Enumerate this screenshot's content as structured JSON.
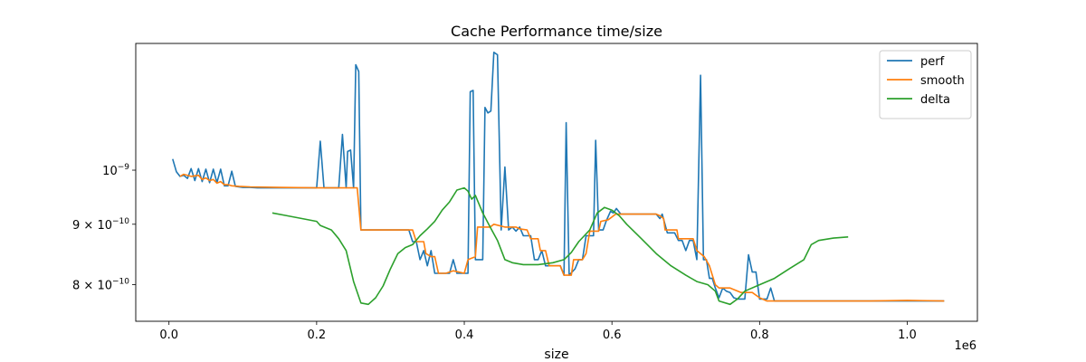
{
  "chart_data": {
    "type": "line",
    "title": "Cache Performance time/size",
    "xlabel": "size",
    "ylabel": "",
    "x_offset_label": "1e6",
    "y_scale": "log",
    "xlim": [
      -45000,
      1095000
    ],
    "ylim": [
      7.45e-10,
      1.28e-09
    ],
    "x_ticks": [
      {
        "value": 0,
        "label": "0.0"
      },
      {
        "value": 200000,
        "label": "0.2"
      },
      {
        "value": 400000,
        "label": "0.4"
      },
      {
        "value": 600000,
        "label": "0.6"
      },
      {
        "value": 800000,
        "label": "0.8"
      },
      {
        "value": 1000000,
        "label": "1.0"
      }
    ],
    "y_ticks": [
      {
        "value": 1e-09,
        "base": "10",
        "exp": "−9",
        "prefix": ""
      },
      {
        "value": 9e-10,
        "base": "10",
        "exp": "−10",
        "prefix": "9 × "
      },
      {
        "value": 8e-10,
        "base": "10",
        "exp": "−10",
        "prefix": "8 × "
      }
    ],
    "legend_position": "top-right",
    "series": [
      {
        "name": "perf",
        "color": "#1f77b4",
        "points": [
          [
            5000,
            1.022e-09
          ],
          [
            10000,
            9.97e-10
          ],
          [
            15000,
            9.88e-10
          ],
          [
            20000,
            9.9e-10
          ],
          [
            25000,
            9.84e-10
          ],
          [
            30000,
            1.003e-09
          ],
          [
            35000,
            9.8e-10
          ],
          [
            40000,
            1.003e-09
          ],
          [
            45000,
            9.78e-10
          ],
          [
            50000,
            1.002e-09
          ],
          [
            55000,
            9.76e-10
          ],
          [
            60000,
            1.002e-09
          ],
          [
            65000,
            9.76e-10
          ],
          [
            70000,
            1.002e-09
          ],
          [
            75000,
            9.7e-10
          ],
          [
            80000,
            9.7e-10
          ],
          [
            85000,
            9.98e-10
          ],
          [
            90000,
            9.69e-10
          ],
          [
            100000,
            9.67e-10
          ],
          [
            110000,
            9.67e-10
          ],
          [
            120000,
            9.66e-10
          ],
          [
            150000,
            9.66e-10
          ],
          [
            180000,
            9.66e-10
          ],
          [
            200000,
            9.66e-10
          ],
          [
            205000,
            1.058e-09
          ],
          [
            210000,
            9.66e-10
          ],
          [
            230000,
            9.66e-10
          ],
          [
            235000,
            1.072e-09
          ],
          [
            240000,
            9.66e-10
          ],
          [
            242000,
            1.037e-09
          ],
          [
            246000,
            1.04e-09
          ],
          [
            250000,
            9.66e-10
          ],
          [
            253000,
            1.228e-09
          ],
          [
            257000,
            1.212e-09
          ],
          [
            260000,
            8.9e-10
          ],
          [
            300000,
            8.9e-10
          ],
          [
            325000,
            8.9e-10
          ],
          [
            330000,
            8.7e-10
          ],
          [
            335000,
            8.7e-10
          ],
          [
            340000,
            8.4e-10
          ],
          [
            345000,
            8.55e-10
          ],
          [
            350000,
            8.3e-10
          ],
          [
            355000,
            8.55e-10
          ],
          [
            360000,
            8.18e-10
          ],
          [
            370000,
            8.18e-10
          ],
          [
            380000,
            8.18e-10
          ],
          [
            385000,
            8.4e-10
          ],
          [
            390000,
            8.18e-10
          ],
          [
            400000,
            8.18e-10
          ],
          [
            405000,
            8.18e-10
          ],
          [
            408000,
            1.165e-09
          ],
          [
            412000,
            1.168e-09
          ],
          [
            415000,
            8.4e-10
          ],
          [
            420000,
            8.4e-10
          ],
          [
            425000,
            8.4e-10
          ],
          [
            428000,
            1.13e-09
          ],
          [
            432000,
            1.118e-09
          ],
          [
            436000,
            1.122e-09
          ],
          [
            440000,
            1.258e-09
          ],
          [
            445000,
            1.252e-09
          ],
          [
            450000,
            8.9e-10
          ],
          [
            455000,
            1.006e-09
          ],
          [
            460000,
            8.9e-10
          ],
          [
            465000,
            8.95e-10
          ],
          [
            470000,
            8.88e-10
          ],
          [
            475000,
            8.95e-10
          ],
          [
            480000,
            8.8e-10
          ],
          [
            490000,
            8.8e-10
          ],
          [
            495000,
            8.4e-10
          ],
          [
            500000,
            8.4e-10
          ],
          [
            505000,
            8.55e-10
          ],
          [
            510000,
            8.3e-10
          ],
          [
            520000,
            8.3e-10
          ],
          [
            525000,
            8.3e-10
          ],
          [
            530000,
            8.3e-10
          ],
          [
            535000,
            8.15e-10
          ],
          [
            538000,
            1.097e-09
          ],
          [
            542000,
            8.15e-10
          ],
          [
            550000,
            8.25e-10
          ],
          [
            555000,
            8.4e-10
          ],
          [
            560000,
            8.4e-10
          ],
          [
            565000,
            8.8e-10
          ],
          [
            570000,
            8.8e-10
          ],
          [
            575000,
            8.8e-10
          ],
          [
            578000,
            1.06e-09
          ],
          [
            582000,
            8.9e-10
          ],
          [
            588000,
            8.9e-10
          ],
          [
            592000,
            9.05e-10
          ],
          [
            598000,
            9.23e-10
          ],
          [
            602000,
            9.2e-10
          ],
          [
            606000,
            9.28e-10
          ],
          [
            612000,
            9.18e-10
          ],
          [
            620000,
            9.18e-10
          ],
          [
            640000,
            9.18e-10
          ],
          [
            660000,
            9.18e-10
          ],
          [
            665000,
            9.1e-10
          ],
          [
            668000,
            9.18e-10
          ],
          [
            675000,
            8.85e-10
          ],
          [
            680000,
            8.85e-10
          ],
          [
            685000,
            8.85e-10
          ],
          [
            690000,
            8.72e-10
          ],
          [
            695000,
            8.72e-10
          ],
          [
            700000,
            8.55e-10
          ],
          [
            705000,
            8.72e-10
          ],
          [
            710000,
            8.72e-10
          ],
          [
            715000,
            8.4e-10
          ],
          [
            720000,
            1.203e-09
          ],
          [
            724000,
            8.4e-10
          ],
          [
            728000,
            8.4e-10
          ],
          [
            732000,
            8.1e-10
          ],
          [
            736000,
            8.1e-10
          ],
          [
            740000,
            7.95e-10
          ],
          [
            745000,
            7.8e-10
          ],
          [
            750000,
            7.95e-10
          ],
          [
            755000,
            7.9e-10
          ],
          [
            760000,
            7.88e-10
          ],
          [
            765000,
            7.8e-10
          ],
          [
            770000,
            7.78e-10
          ],
          [
            775000,
            7.78e-10
          ],
          [
            780000,
            7.78e-10
          ],
          [
            785000,
            8.48e-10
          ],
          [
            790000,
            8.2e-10
          ],
          [
            795000,
            8.2e-10
          ],
          [
            800000,
            7.78e-10
          ],
          [
            805000,
            7.78e-10
          ],
          [
            810000,
            7.78e-10
          ],
          [
            815000,
            7.95e-10
          ],
          [
            820000,
            7.75e-10
          ],
          [
            850000,
            7.75e-10
          ],
          [
            900000,
            7.75e-10
          ],
          [
            950000,
            7.75e-10
          ],
          [
            1000000,
            7.75e-10
          ],
          [
            1050000,
            7.75e-10
          ]
        ]
      },
      {
        "name": "smooth",
        "color": "#ff7f0e",
        "points": [
          [
            15000,
            9.88e-10
          ],
          [
            20000,
            9.92e-10
          ],
          [
            30000,
            9.88e-10
          ],
          [
            40000,
            9.9e-10
          ],
          [
            45000,
            9.82e-10
          ],
          [
            50000,
            9.85e-10
          ],
          [
            55000,
            9.8e-10
          ],
          [
            60000,
            9.82e-10
          ],
          [
            65000,
            9.75e-10
          ],
          [
            70000,
            9.78e-10
          ],
          [
            75000,
            9.72e-10
          ],
          [
            80000,
            9.72e-10
          ],
          [
            85000,
            9.7e-10
          ],
          [
            95000,
            9.69e-10
          ],
          [
            110000,
            9.68e-10
          ],
          [
            150000,
            9.67e-10
          ],
          [
            200000,
            9.66e-10
          ],
          [
            255000,
            9.66e-10
          ],
          [
            260000,
            8.9e-10
          ],
          [
            300000,
            8.9e-10
          ],
          [
            330000,
            8.9e-10
          ],
          [
            335000,
            8.7e-10
          ],
          [
            345000,
            8.7e-10
          ],
          [
            348000,
            8.5e-10
          ],
          [
            355000,
            8.45e-10
          ],
          [
            360000,
            8.45e-10
          ],
          [
            365000,
            8.18e-10
          ],
          [
            375000,
            8.18e-10
          ],
          [
            385000,
            8.22e-10
          ],
          [
            400000,
            8.18e-10
          ],
          [
            405000,
            8.4e-10
          ],
          [
            415000,
            8.45e-10
          ],
          [
            418000,
            8.95e-10
          ],
          [
            435000,
            8.95e-10
          ],
          [
            440000,
            9e-10
          ],
          [
            455000,
            8.95e-10
          ],
          [
            470000,
            8.95e-10
          ],
          [
            475000,
            8.92e-10
          ],
          [
            485000,
            8.9e-10
          ],
          [
            490000,
            8.75e-10
          ],
          [
            500000,
            8.75e-10
          ],
          [
            503000,
            8.55e-10
          ],
          [
            510000,
            8.55e-10
          ],
          [
            515000,
            8.3e-10
          ],
          [
            530000,
            8.3e-10
          ],
          [
            535000,
            8.15e-10
          ],
          [
            545000,
            8.15e-10
          ],
          [
            548000,
            8.4e-10
          ],
          [
            560000,
            8.4e-10
          ],
          [
            565000,
            8.5e-10
          ],
          [
            570000,
            8.88e-10
          ],
          [
            582000,
            8.88e-10
          ],
          [
            585000,
            9.05e-10
          ],
          [
            595000,
            9.08e-10
          ],
          [
            605000,
            9.18e-10
          ],
          [
            620000,
            9.18e-10
          ],
          [
            640000,
            9.18e-10
          ],
          [
            660000,
            9.18e-10
          ],
          [
            665000,
            9.15e-10
          ],
          [
            670000,
            9.1e-10
          ],
          [
            672000,
            8.9e-10
          ],
          [
            688000,
            8.9e-10
          ],
          [
            690000,
            8.75e-10
          ],
          [
            710000,
            8.75e-10
          ],
          [
            715000,
            8.55e-10
          ],
          [
            725000,
            8.45e-10
          ],
          [
            732000,
            8.3e-10
          ],
          [
            740000,
            8e-10
          ],
          [
            745000,
            7.95e-10
          ],
          [
            760000,
            7.95e-10
          ],
          [
            775000,
            7.88e-10
          ],
          [
            790000,
            7.88e-10
          ],
          [
            800000,
            7.8e-10
          ],
          [
            810000,
            7.75e-10
          ],
          [
            850000,
            7.75e-10
          ],
          [
            900000,
            7.75e-10
          ],
          [
            950000,
            7.75e-10
          ],
          [
            1000000,
            7.76e-10
          ],
          [
            1050000,
            7.75e-10
          ]
        ]
      },
      {
        "name": "delta",
        "color": "#2ca02c",
        "points": [
          [
            140000,
            9.2e-10
          ],
          [
            160000,
            9.15e-10
          ],
          [
            180000,
            9.1e-10
          ],
          [
            200000,
            9.05e-10
          ],
          [
            205000,
            8.98e-10
          ],
          [
            220000,
            8.9e-10
          ],
          [
            230000,
            8.75e-10
          ],
          [
            240000,
            8.55e-10
          ],
          [
            250000,
            8.05e-10
          ],
          [
            260000,
            7.72e-10
          ],
          [
            270000,
            7.7e-10
          ],
          [
            280000,
            7.8e-10
          ],
          [
            290000,
            7.98e-10
          ],
          [
            300000,
            8.25e-10
          ],
          [
            310000,
            8.5e-10
          ],
          [
            320000,
            8.6e-10
          ],
          [
            330000,
            8.65e-10
          ],
          [
            340000,
            8.8e-10
          ],
          [
            350000,
            8.92e-10
          ],
          [
            360000,
            9.05e-10
          ],
          [
            370000,
            9.25e-10
          ],
          [
            380000,
            9.4e-10
          ],
          [
            390000,
            9.62e-10
          ],
          [
            400000,
            9.66e-10
          ],
          [
            405000,
            9.6e-10
          ],
          [
            410000,
            9.45e-10
          ],
          [
            415000,
            9.52e-10
          ],
          [
            425000,
            9.2e-10
          ],
          [
            435000,
            8.95e-10
          ],
          [
            445000,
            8.72e-10
          ],
          [
            455000,
            8.4e-10
          ],
          [
            465000,
            8.35e-10
          ],
          [
            480000,
            8.32e-10
          ],
          [
            500000,
            8.32e-10
          ],
          [
            520000,
            8.35e-10
          ],
          [
            535000,
            8.4e-10
          ],
          [
            545000,
            8.52e-10
          ],
          [
            555000,
            8.7e-10
          ],
          [
            570000,
            8.9e-10
          ],
          [
            580000,
            9.2e-10
          ],
          [
            590000,
            9.3e-10
          ],
          [
            600000,
            9.25e-10
          ],
          [
            610000,
            9.15e-10
          ],
          [
            620000,
            9e-10
          ],
          [
            640000,
            8.75e-10
          ],
          [
            660000,
            8.5e-10
          ],
          [
            680000,
            8.3e-10
          ],
          [
            700000,
            8.15e-10
          ],
          [
            715000,
            8.05e-10
          ],
          [
            730000,
            8e-10
          ],
          [
            735000,
            7.95e-10
          ],
          [
            740000,
            7.9e-10
          ],
          [
            745000,
            7.75e-10
          ],
          [
            760000,
            7.7e-10
          ],
          [
            770000,
            7.78e-10
          ],
          [
            780000,
            7.9e-10
          ],
          [
            800000,
            8e-10
          ],
          [
            820000,
            8.1e-10
          ],
          [
            840000,
            8.25e-10
          ],
          [
            860000,
            8.4e-10
          ],
          [
            870000,
            8.65e-10
          ],
          [
            880000,
            8.72e-10
          ],
          [
            900000,
            8.76e-10
          ],
          [
            920000,
            8.78e-10
          ]
        ]
      }
    ]
  }
}
